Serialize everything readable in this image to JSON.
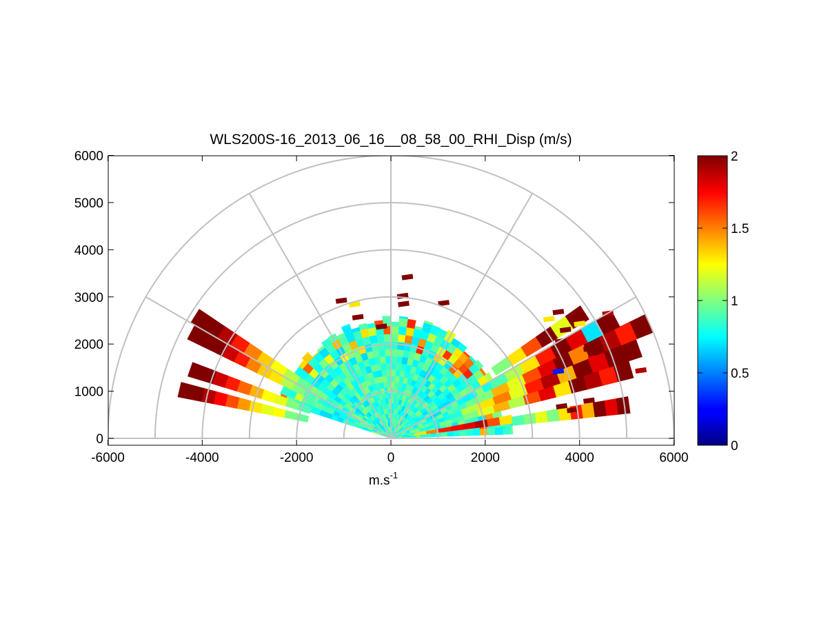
{
  "chart_data": {
    "type": "heatmap",
    "subtype": "polar-rhi-scan",
    "title": "WLS200S-16_2013_06_16__08_58_00_RHI_Disp (m/s)",
    "xlabel": "m.s",
    "xlabel_superscript": "-1",
    "ylabel": "",
    "xlim": [
      -6000,
      6000
    ],
    "ylim": [
      0,
      6000
    ],
    "x_ticks": [
      "-6000",
      "-4000",
      "-2000",
      "0",
      "2000",
      "4000",
      "6000"
    ],
    "y_ticks": [
      "0",
      "1000",
      "2000",
      "3000",
      "4000",
      "5000",
      "6000"
    ],
    "polar_grid": {
      "range_rings": [
        1000,
        2000,
        3000,
        4000,
        5000,
        6000
      ],
      "spoke_angles_deg": [
        0,
        30,
        60,
        90,
        120,
        150,
        180
      ],
      "color": "#c0c0c0"
    },
    "colorbar": {
      "colormap": "jet",
      "range": [
        0,
        2
      ],
      "ticks": [
        "0",
        "0.5",
        "1",
        "1.5",
        "2"
      ]
    },
    "dense_region": {
      "range_max_m": 2600,
      "azimuth_range_deg": [
        2,
        160
      ],
      "typical_value": 0.85
    },
    "scan_arms": [
      {
        "elevation_deg": 167,
        "range_m": [
          1800,
          4600
        ],
        "values": [
          0.95,
          1.0,
          1.25,
          1.2,
          1.3,
          1.45,
          1.6,
          1.75,
          1.9,
          2.0,
          2.0
        ]
      },
      {
        "elevation_deg": 161,
        "range_m": [
          1800,
          4500
        ],
        "values": [
          0.9,
          1.0,
          1.2,
          1.25,
          1.4,
          1.55,
          1.7,
          1.85,
          2.0,
          2.0
        ]
      },
      {
        "elevation_deg": 152,
        "range_m": [
          1800,
          4800
        ],
        "values": [
          0.9,
          1.0,
          1.1,
          1.3,
          1.35,
          1.5,
          1.7,
          1.85,
          2.0,
          2.0,
          2.0
        ]
      },
      {
        "elevation_deg": 148,
        "range_m": [
          2000,
          4900
        ],
        "values": [
          0.95,
          1.1,
          1.25,
          1.35,
          1.5,
          1.7,
          1.9,
          2.0,
          2.0
        ]
      },
      {
        "elevation_deg": 9,
        "range_m": [
          500,
          2600
        ],
        "values": [
          1.3,
          1.5,
          1.7,
          1.75,
          1.8,
          1.9,
          1.6,
          1.3
        ]
      },
      {
        "elevation_deg": 8,
        "range_m": [
          2600,
          5100
        ],
        "values": [
          0.9,
          1.0,
          1.2,
          1.0,
          1.3,
          1.7,
          1.4,
          2.0,
          1.8,
          2.0
        ]
      },
      {
        "elevation_deg": 16,
        "range_m": [
          1600,
          5300
        ],
        "values": [
          1.0,
          1.2,
          1.4,
          1.1,
          1.6,
          1.8,
          1.3,
          2.0,
          1.9,
          1.7,
          2.0
        ]
      },
      {
        "elevation_deg": 20,
        "range_m": [
          1600,
          5600
        ],
        "values": [
          1.1,
          1.3,
          1.5,
          1.2,
          1.7,
          1.9,
          1.4,
          2.0,
          1.8,
          2.0,
          2.0
        ]
      },
      {
        "elevation_deg": 24,
        "range_m": [
          2000,
          6000
        ],
        "values": [
          1.0,
          1.4,
          1.2,
          1.6,
          1.8,
          2.0,
          1.5,
          2.0,
          1.9,
          1.7,
          2.0
        ]
      },
      {
        "elevation_deg": 28,
        "range_m": [
          2400,
          5400
        ],
        "values": [
          0.9,
          1.1,
          1.3,
          1.7,
          2.0,
          1.8,
          0.7,
          2.0
        ]
      },
      {
        "elevation_deg": 33,
        "range_m": [
          2600,
          4900
        ],
        "values": [
          1.0,
          1.3,
          1.6,
          2.0,
          1.2,
          2.0
        ]
      }
    ],
    "isolated_cells": [
      {
        "x": 350,
        "y": 3420,
        "value": 2.0
      },
      {
        "x": 250,
        "y": 3020,
        "value": 2.0
      },
      {
        "x": 270,
        "y": 2850,
        "value": 2.0
      },
      {
        "x": 1120,
        "y": 2870,
        "value": 2.0
      },
      {
        "x": -1050,
        "y": 2920,
        "value": 2.0
      },
      {
        "x": -770,
        "y": 2840,
        "value": 1.3
      },
      {
        "x": -700,
        "y": 2570,
        "value": 2.0
      },
      {
        "x": -200,
        "y": 2370,
        "value": 2.0
      },
      {
        "x": 3550,
        "y": 2680,
        "value": 2.0
      },
      {
        "x": 3350,
        "y": 2530,
        "value": 1.3
      },
      {
        "x": 4000,
        "y": 2430,
        "value": 1.3
      },
      {
        "x": 4600,
        "y": 2650,
        "value": 1.9
      },
      {
        "x": 3700,
        "y": 2300,
        "value": 2.0
      },
      {
        "x": 3600,
        "y": 2060,
        "value": 2.0
      },
      {
        "x": 4200,
        "y": 1900,
        "value": 2.0
      },
      {
        "x": 4300,
        "y": 1700,
        "value": 1.8
      },
      {
        "x": 4100,
        "y": 1450,
        "value": 2.0
      },
      {
        "x": 4950,
        "y": 1330,
        "value": 2.0
      },
      {
        "x": 5300,
        "y": 1440,
        "value": 1.9
      },
      {
        "x": 3550,
        "y": 1420,
        "value": 0.3
      },
      {
        "x": 4200,
        "y": 800,
        "value": 2.0
      },
      {
        "x": 3620,
        "y": 680,
        "value": 2.0
      },
      {
        "x": 3850,
        "y": 600,
        "value": 2.0
      }
    ]
  }
}
